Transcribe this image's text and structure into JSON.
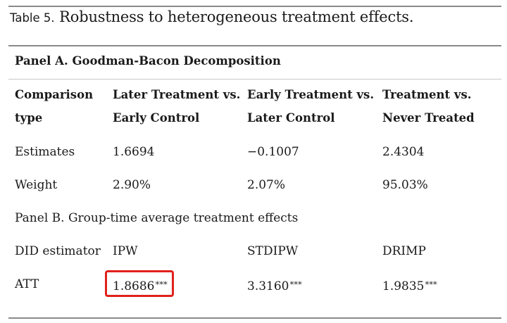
{
  "caption": {
    "label": "Table 5.",
    "title": "Robustness to heterogeneous treatment effects."
  },
  "panel_a": {
    "title": "Panel A. Goodman-Bacon Decomposition",
    "header": {
      "col0": [
        "Comparison",
        "type"
      ],
      "col1": [
        "Later Treatment vs.",
        "Early Control"
      ],
      "col2": [
        "Early Treatment vs.",
        "Later Control"
      ],
      "col3": [
        "Treatment vs.",
        "Never Treated"
      ]
    },
    "rows": [
      {
        "label": "Estimates",
        "values": [
          "1.6694",
          "−0.1007",
          "2.4304"
        ]
      },
      {
        "label": "Weight",
        "values": [
          "2.90%",
          "2.07%",
          "95.03%"
        ]
      }
    ]
  },
  "panel_b": {
    "title": "Panel B. Group-time average treatment effects",
    "header": {
      "label": "DID estimator",
      "values": [
        "IPW",
        "STDIPW",
        "DRIMP"
      ]
    },
    "att": {
      "label": "ATT",
      "values": [
        "1.8686",
        "3.3160",
        "1.9835"
      ],
      "stars": [
        "***",
        "***",
        "***"
      ]
    }
  },
  "highlight_color": "#e0211b"
}
